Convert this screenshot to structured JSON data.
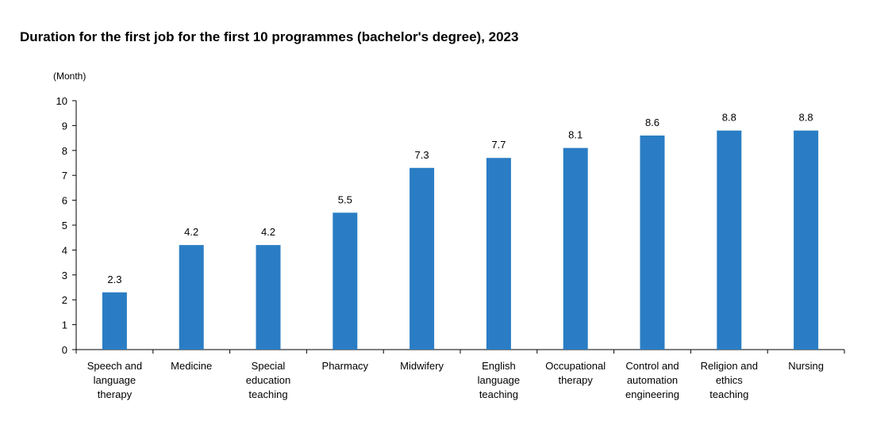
{
  "chart_data": {
    "type": "bar",
    "title": "Duration for the first job for the first 10 programmes (bachelor's degree), 2023",
    "ylabel": "(Month)",
    "xlabel": "",
    "ylim": [
      0,
      10
    ],
    "yticks": [
      0,
      1,
      2,
      3,
      4,
      5,
      6,
      7,
      8,
      9,
      10
    ],
    "categories": [
      "Speech and language therapy",
      "Medicine",
      "Special education teaching",
      "Pharmacy",
      "Midwifery",
      "English language teaching",
      "Occupational therapy",
      "Control and automation engineering",
      "Religion and ethics teaching",
      "Nursing"
    ],
    "category_lines": [
      [
        "Speech and",
        "language",
        "therapy"
      ],
      [
        "Medicine"
      ],
      [
        "Special",
        "education",
        "teaching"
      ],
      [
        "Pharmacy"
      ],
      [
        "Midwifery"
      ],
      [
        "English",
        "language",
        "teaching"
      ],
      [
        "Occupational",
        "therapy"
      ],
      [
        "Control and",
        "automation",
        "engineering"
      ],
      [
        "Religion and",
        "ethics",
        "teaching"
      ],
      [
        "Nursing"
      ]
    ],
    "values": [
      2.3,
      4.2,
      4.2,
      5.5,
      7.3,
      7.7,
      8.1,
      8.6,
      8.8,
      8.8
    ],
    "value_labels": [
      "2.3",
      "4.2",
      "4.2",
      "5.5",
      "7.3",
      "7.7",
      "8.1",
      "8.6",
      "8.8",
      "8.8"
    ],
    "bar_color": "#2a7dc4",
    "grid": false,
    "legend": "none"
  }
}
